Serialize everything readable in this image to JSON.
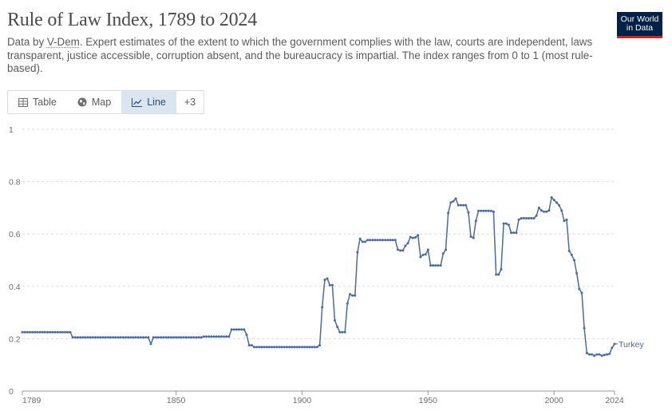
{
  "header": {
    "title": "Rule of Law Index, 1789 to 2024",
    "subtitle_prefix": "Data by ",
    "subtitle_source": "V-Dem",
    "subtitle_rest": ". Expert estimates of the extent to which the government complies with the law, courts are independent, laws transparent, justice accessible, corruption absent, and the bureaucracy is impartial. The index ranges from 0 to 1 (most rule-based)."
  },
  "logo": {
    "line1": "Our World",
    "line2": "in Data"
  },
  "tabs": [
    {
      "label": "Table",
      "icon": "table-icon"
    },
    {
      "label": "Map",
      "icon": "globe-icon"
    },
    {
      "label": "Line",
      "icon": "line-chart-icon",
      "active": true
    },
    {
      "label": "+3"
    }
  ],
  "colors": {
    "series": "#4c6a9c",
    "grid": "#dddddd",
    "axis": "#999999"
  },
  "chart_data": {
    "type": "line",
    "title": "Rule of Law Index, 1789 to 2024",
    "xlabel": "",
    "ylabel": "",
    "xlim": [
      1789,
      2024
    ],
    "ylim": [
      0,
      1
    ],
    "x_ticks": [
      1789,
      1850,
      1900,
      1950,
      2000,
      2024
    ],
    "y_ticks": [
      {
        "value": 0,
        "label": "0"
      },
      {
        "value": 0.2,
        "label": "0.2"
      },
      {
        "value": 0.4,
        "label": "0.4"
      },
      {
        "value": 0.6,
        "label": "0.6"
      },
      {
        "value": 0.8,
        "label": "0.8"
      },
      {
        "value": 1,
        "label": "1"
      }
    ],
    "grid": "horizontal dashed",
    "series": [
      {
        "name": "Turkey",
        "points": [
          [
            1789,
            0.225
          ],
          [
            1808,
            0.225
          ],
          [
            1809,
            0.205
          ],
          [
            1839,
            0.205
          ],
          [
            1840,
            0.18
          ],
          [
            1841,
            0.205
          ],
          [
            1860,
            0.205
          ],
          [
            1861,
            0.208
          ],
          [
            1871,
            0.208
          ],
          [
            1872,
            0.235
          ],
          [
            1877,
            0.235
          ],
          [
            1878,
            0.215
          ],
          [
            1879,
            0.175
          ],
          [
            1880,
            0.175
          ],
          [
            1881,
            0.168
          ],
          [
            1906,
            0.168
          ],
          [
            1907,
            0.175
          ],
          [
            1908,
            0.32
          ],
          [
            1909,
            0.425
          ],
          [
            1910,
            0.43
          ],
          [
            1911,
            0.405
          ],
          [
            1912,
            0.405
          ],
          [
            1913,
            0.27
          ],
          [
            1914,
            0.245
          ],
          [
            1915,
            0.225
          ],
          [
            1917,
            0.225
          ],
          [
            1918,
            0.335
          ],
          [
            1919,
            0.37
          ],
          [
            1920,
            0.365
          ],
          [
            1921,
            0.365
          ],
          [
            1922,
            0.53
          ],
          [
            1923,
            0.582
          ],
          [
            1924,
            0.57
          ],
          [
            1925,
            0.57
          ],
          [
            1926,
            0.577
          ],
          [
            1937,
            0.577
          ],
          [
            1938,
            0.54
          ],
          [
            1939,
            0.537
          ],
          [
            1940,
            0.537
          ],
          [
            1941,
            0.555
          ],
          [
            1942,
            0.565
          ],
          [
            1943,
            0.588
          ],
          [
            1944,
            0.585
          ],
          [
            1945,
            0.587
          ],
          [
            1946,
            0.595
          ],
          [
            1947,
            0.512
          ],
          [
            1948,
            0.52
          ],
          [
            1949,
            0.522
          ],
          [
            1950,
            0.54
          ],
          [
            1951,
            0.48
          ],
          [
            1955,
            0.48
          ],
          [
            1956,
            0.525
          ],
          [
            1957,
            0.54
          ],
          [
            1958,
            0.68
          ],
          [
            1959,
            0.72
          ],
          [
            1960,
            0.725
          ],
          [
            1961,
            0.735
          ],
          [
            1962,
            0.71
          ],
          [
            1965,
            0.71
          ],
          [
            1966,
            0.682
          ],
          [
            1967,
            0.59
          ],
          [
            1968,
            0.585
          ],
          [
            1969,
            0.65
          ],
          [
            1970,
            0.688
          ],
          [
            1975,
            0.688
          ],
          [
            1976,
            0.685
          ],
          [
            1977,
            0.445
          ],
          [
            1978,
            0.445
          ],
          [
            1979,
            0.465
          ],
          [
            1980,
            0.64
          ],
          [
            1981,
            0.64
          ],
          [
            1982,
            0.635
          ],
          [
            1983,
            0.605
          ],
          [
            1985,
            0.605
          ],
          [
            1986,
            0.655
          ],
          [
            1987,
            0.66
          ],
          [
            1992,
            0.66
          ],
          [
            1993,
            0.67
          ],
          [
            1994,
            0.7
          ],
          [
            1995,
            0.69
          ],
          [
            1996,
            0.685
          ],
          [
            1997,
            0.685
          ],
          [
            1998,
            0.69
          ],
          [
            1999,
            0.74
          ],
          [
            2000,
            0.73
          ],
          [
            2001,
            0.72
          ],
          [
            2002,
            0.71
          ],
          [
            2003,
            0.69
          ],
          [
            2004,
            0.65
          ],
          [
            2005,
            0.655
          ],
          [
            2006,
            0.535
          ],
          [
            2007,
            0.52
          ],
          [
            2008,
            0.5
          ],
          [
            2009,
            0.45
          ],
          [
            2010,
            0.39
          ],
          [
            2011,
            0.375
          ],
          [
            2012,
            0.24
          ],
          [
            2013,
            0.145
          ],
          [
            2014,
            0.14
          ],
          [
            2015,
            0.14
          ],
          [
            2016,
            0.135
          ],
          [
            2017,
            0.14
          ],
          [
            2018,
            0.14
          ],
          [
            2019,
            0.135
          ],
          [
            2020,
            0.138
          ],
          [
            2021,
            0.14
          ],
          [
            2022,
            0.142
          ],
          [
            2023,
            0.165
          ],
          [
            2024,
            0.18
          ]
        ]
      }
    ]
  }
}
